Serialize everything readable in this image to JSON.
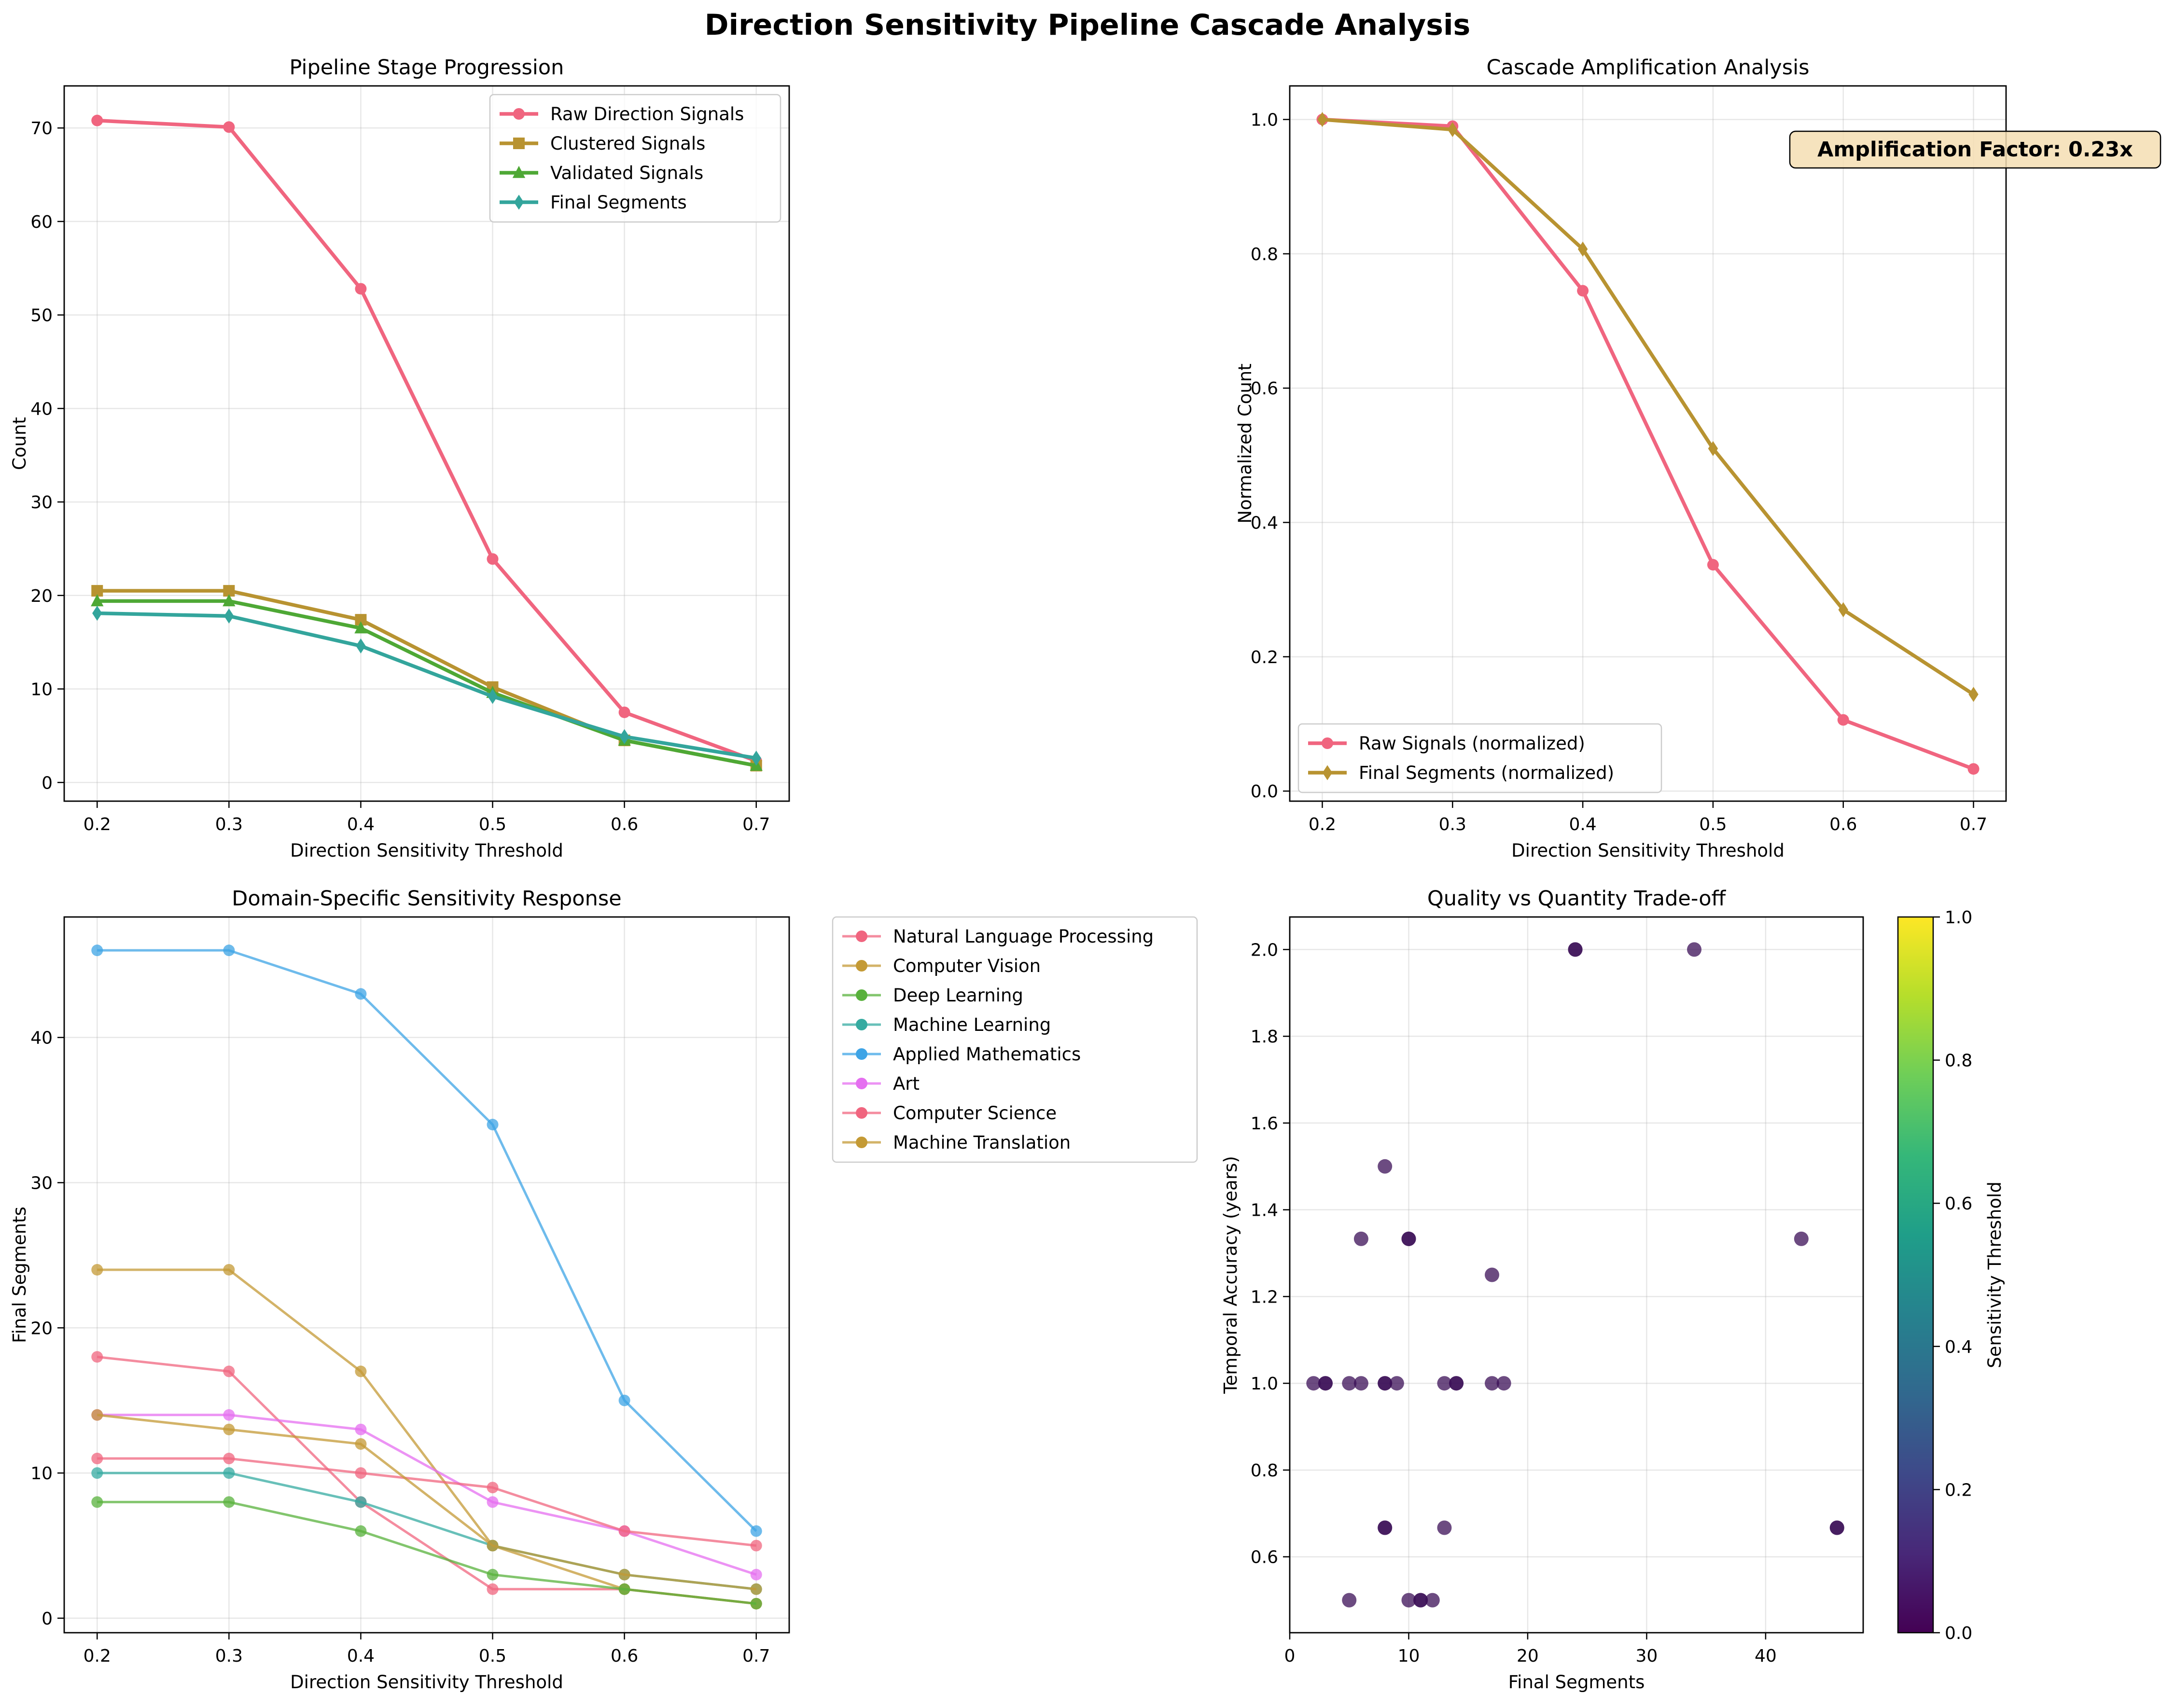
{
  "figure": {
    "title": "Direction Sensitivity Pipeline Cascade Analysis"
  },
  "chart_data": [
    {
      "type": "line",
      "title": "Pipeline Stage Progression",
      "xlabel": "Direction Sensitivity Threshold",
      "ylabel": "Count",
      "xlim": [
        0.175,
        0.725
      ],
      "ylim": [
        -2,
        74.5
      ],
      "xticks": [
        0.2,
        0.3,
        0.4,
        0.5,
        0.6,
        0.7
      ],
      "yticks": [
        0,
        10,
        20,
        30,
        40,
        50,
        60,
        70
      ],
      "grid": true,
      "legend": "top-right",
      "x": [
        0.2,
        0.3,
        0.4,
        0.5,
        0.6,
        0.7
      ],
      "series": [
        {
          "name": "Raw Direction Signals",
          "color": "#f0657f",
          "marker": "circle",
          "values": [
            70.8,
            70.1,
            52.8,
            23.9,
            7.5,
            2.3
          ]
        },
        {
          "name": "Clustered Signals",
          "color": "#b89331",
          "marker": "square",
          "values": [
            20.5,
            20.5,
            17.4,
            10.2,
            4.5,
            1.8
          ]
        },
        {
          "name": "Validated Signals",
          "color": "#4ea835",
          "marker": "triangle",
          "values": [
            19.4,
            19.4,
            16.5,
            9.6,
            4.5,
            1.8
          ]
        },
        {
          "name": "Final Segments",
          "color": "#33a59c",
          "marker": "diamond",
          "values": [
            18.1,
            17.8,
            14.6,
            9.2,
            4.9,
            2.6
          ]
        }
      ]
    },
    {
      "type": "line",
      "title": "Cascade Amplification Analysis",
      "xlabel": "Direction Sensitivity Threshold",
      "ylabel": "Normalized Count",
      "xlim": [
        0.175,
        0.725
      ],
      "ylim": [
        -0.015,
        1.05
      ],
      "xticks": [
        0.2,
        0.3,
        0.4,
        0.5,
        0.6,
        0.7
      ],
      "yticks": [
        0.0,
        0.2,
        0.4,
        0.6,
        0.8,
        1.0
      ],
      "grid": true,
      "legend": "bottom-left",
      "annotation": "Amplification Factor: 0.23x",
      "x": [
        0.2,
        0.3,
        0.4,
        0.5,
        0.6,
        0.7
      ],
      "series": [
        {
          "name": "Raw Signals (normalized)",
          "color": "#f0657f",
          "marker": "circle",
          "values": [
            1.0,
            0.99,
            0.745,
            0.337,
            0.106,
            0.033
          ]
        },
        {
          "name": "Final Segments (normalized)",
          "color": "#b89331",
          "marker": "diamond",
          "values": [
            1.0,
            0.985,
            0.807,
            0.51,
            0.27,
            0.144
          ]
        }
      ]
    },
    {
      "type": "line",
      "title": "Domain-Specific Sensitivity Response",
      "xlabel": "Direction Sensitivity Threshold",
      "ylabel": "Final Segments",
      "xlim": [
        0.175,
        0.725
      ],
      "ylim": [
        -1.0,
        48.3
      ],
      "xticks": [
        0.2,
        0.3,
        0.4,
        0.5,
        0.6,
        0.7
      ],
      "yticks": [
        0,
        10,
        20,
        30,
        40
      ],
      "grid": true,
      "legend": "outside-right",
      "x": [
        0.2,
        0.3,
        0.4,
        0.5,
        0.6,
        0.7
      ],
      "series": [
        {
          "name": "Natural Language Processing",
          "color": "#f0657f",
          "values": [
            18,
            17,
            8,
            2,
            2,
            1
          ]
        },
        {
          "name": "Computer Vision",
          "color": "#c49a35",
          "values": [
            24,
            24,
            17,
            5,
            2,
            1
          ]
        },
        {
          "name": "Deep Learning",
          "color": "#58b13c",
          "values": [
            8,
            8,
            6,
            3,
            2,
            1
          ]
        },
        {
          "name": "Machine Learning",
          "color": "#36aba1",
          "values": [
            10,
            10,
            8,
            5,
            3,
            2
          ]
        },
        {
          "name": "Applied Mathematics",
          "color": "#3ea4e6",
          "values": [
            46,
            46,
            43,
            34,
            15,
            6
          ]
        },
        {
          "name": "Art",
          "color": "#e56ff0",
          "values": [
            14,
            14,
            13,
            8,
            6,
            3
          ]
        },
        {
          "name": "Computer Science",
          "color": "#f0657f",
          "values": [
            11,
            11,
            10,
            9,
            6,
            5
          ]
        },
        {
          "name": "Machine Translation",
          "color": "#c49a35",
          "values": [
            14,
            13,
            12,
            5,
            3,
            2
          ]
        }
      ]
    },
    {
      "type": "scatter",
      "title": "Quality vs Quantity Trade-off",
      "xlabel": "Final Segments",
      "ylabel": "Temporal Accuracy (years)",
      "xlim": [
        0,
        48.2
      ],
      "ylim": [
        0.425,
        2.075
      ],
      "xticks": [
        0,
        10,
        20,
        30,
        40
      ],
      "yticks": [
        0.6,
        0.8,
        1.0,
        1.2,
        1.4,
        1.6,
        1.8,
        2.0
      ],
      "grid": true,
      "colorbar": {
        "label": "Sensitivity Threshold",
        "range": [
          0.0,
          1.0
        ],
        "ticks": [
          "0.0",
          "0.2",
          "0.4",
          "0.6",
          "0.8",
          "1.0"
        ]
      },
      "point_color": "#3b0f57",
      "points": [
        [
          2,
          1.0
        ],
        [
          3,
          1.0
        ],
        [
          3,
          1.0
        ],
        [
          5,
          1.0
        ],
        [
          6,
          1.0
        ],
        [
          8,
          1.0
        ],
        [
          8,
          1.0
        ],
        [
          9,
          1.0
        ],
        [
          13,
          1.0
        ],
        [
          14,
          1.0
        ],
        [
          14,
          1.0
        ],
        [
          17,
          1.0
        ],
        [
          18,
          1.0
        ],
        [
          6,
          1.333
        ],
        [
          10,
          1.333
        ],
        [
          10,
          1.333
        ],
        [
          43,
          1.333
        ],
        [
          8,
          1.5
        ],
        [
          17,
          1.25
        ],
        [
          8,
          0.667
        ],
        [
          8,
          0.667
        ],
        [
          13,
          0.667
        ],
        [
          46,
          0.667
        ],
        [
          46,
          0.667
        ],
        [
          5,
          0.5
        ],
        [
          10,
          0.5
        ],
        [
          11,
          0.5
        ],
        [
          11,
          0.5
        ],
        [
          12,
          0.5
        ],
        [
          24,
          2.0
        ],
        [
          24,
          2.0
        ],
        [
          34,
          2.0
        ]
      ]
    }
  ]
}
